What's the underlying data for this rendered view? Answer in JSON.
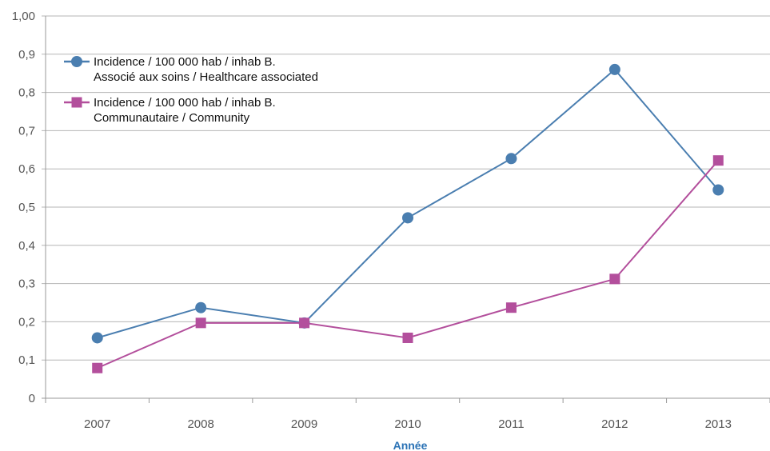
{
  "chart_data": {
    "type": "line",
    "categories": [
      "2007",
      "2008",
      "2009",
      "2010",
      "2011",
      "2012",
      "2013"
    ],
    "xlabel": "Année",
    "ylabel": "",
    "ylim": [
      0,
      1.0
    ],
    "yticks": [
      0,
      0.1,
      0.2,
      0.3,
      0.4,
      0.5,
      0.6,
      0.7,
      0.8,
      0.9,
      1.0
    ],
    "ytick_labels": [
      "0",
      "0,1",
      "0,2",
      "0,3",
      "0,4",
      "0,5",
      "0,6",
      "0,7",
      "0,8",
      "0,9",
      "1,00"
    ],
    "grid": "horizontal",
    "legend_position": "top-left",
    "series": [
      {
        "name_line1": "Incidence / 100 000 hab / inhab B.",
        "name_line2": "Associé aux soins / Healthcare associated",
        "marker": "circle",
        "color": "#4a7eb0",
        "values": [
          0.158,
          0.237,
          0.197,
          0.472,
          0.627,
          0.86,
          0.545
        ]
      },
      {
        "name_line1": "Incidence / 100 000 hab / inhab B.",
        "name_line2": "Communautaire / Community",
        "marker": "square",
        "color": "#b34f9c",
        "values": [
          0.079,
          0.197,
          0.197,
          0.158,
          0.237,
          0.312,
          0.622
        ]
      }
    ]
  }
}
